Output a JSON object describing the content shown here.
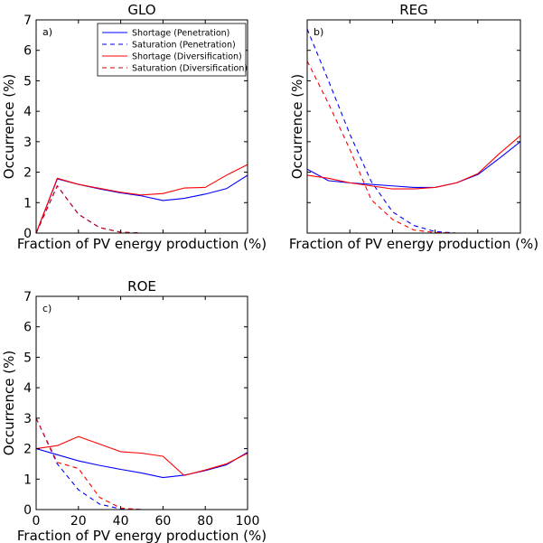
{
  "chart_data": [
    {
      "type": "line",
      "title": "GLO",
      "panel_tag": "a)",
      "xlabel": "Fraction of PV energy production (%)",
      "ylabel": "Occurrence (%)",
      "xlim": [
        0,
        100
      ],
      "ylim": [
        0,
        7
      ],
      "show_x_tick_labels": false,
      "show_y_tick_labels": true,
      "legend_position": "top-right",
      "x": [
        0,
        10,
        20,
        30,
        40,
        50,
        60,
        70,
        80,
        90,
        100
      ],
      "series": [
        {
          "name": "Shortage (Penetration)",
          "color": "#0000ff",
          "style": "solid",
          "values": [
            0,
            1.78,
            1.6,
            1.45,
            1.32,
            1.22,
            1.07,
            1.14,
            1.28,
            1.46,
            1.9
          ]
        },
        {
          "name": "Saturation (Penetration)",
          "color": "#0000ff",
          "style": "dashed",
          "values": [
            0,
            1.55,
            0.62,
            0.18,
            0.03,
            0,
            0,
            0,
            0,
            0,
            0
          ]
        },
        {
          "name": "Shortage (Diversification)",
          "color": "#ff0000",
          "style": "solid",
          "values": [
            0,
            1.8,
            1.6,
            1.47,
            1.34,
            1.25,
            1.3,
            1.48,
            1.5,
            1.9,
            2.25
          ]
        },
        {
          "name": "Saturation (Diversification)",
          "color": "#cc0000",
          "style": "dashed",
          "values": [
            0,
            1.55,
            0.62,
            0.18,
            0.03,
            0,
            0,
            0,
            0,
            0,
            0
          ]
        }
      ]
    },
    {
      "type": "line",
      "title": "REG",
      "panel_tag": "b)",
      "xlabel": "Fraction of PV energy production (%)",
      "ylabel": "Occurrence (%)",
      "xlim": [
        0,
        100
      ],
      "ylim": [
        0,
        7
      ],
      "show_x_tick_labels": false,
      "show_y_tick_labels": false,
      "x": [
        0,
        10,
        20,
        30,
        40,
        50,
        60,
        70,
        80,
        90,
        100
      ],
      "series": [
        {
          "name": "Shortage (Penetration)",
          "color": "#0000ff",
          "style": "solid",
          "values": [
            2.1,
            1.72,
            1.65,
            1.6,
            1.55,
            1.5,
            1.5,
            1.65,
            1.92,
            2.45,
            3.0
          ]
        },
        {
          "name": "Saturation (Penetration)",
          "color": "#0000ff",
          "style": "dashed",
          "values": [
            6.7,
            5.0,
            3.25,
            1.7,
            0.7,
            0.25,
            0.05,
            0,
            0,
            0,
            0
          ]
        },
        {
          "name": "Shortage (Diversification)",
          "color": "#ff0000",
          "style": "solid",
          "values": [
            1.9,
            1.8,
            1.65,
            1.55,
            1.45,
            1.45,
            1.5,
            1.65,
            1.95,
            2.6,
            3.2
          ]
        },
        {
          "name": "Saturation (Diversification)",
          "color": "#ff0000",
          "style": "dashed",
          "values": [
            5.65,
            4.25,
            2.75,
            1.1,
            0.45,
            0.1,
            0.02,
            0,
            0,
            0,
            0
          ]
        }
      ]
    },
    {
      "type": "line",
      "title": "ROE",
      "panel_tag": "c)",
      "xlabel": "Fraction of PV energy production (%)",
      "ylabel": "Occurrence (%)",
      "xlim": [
        0,
        100
      ],
      "ylim": [
        0,
        7
      ],
      "x_ticks": [
        0,
        20,
        40,
        60,
        80,
        100
      ],
      "y_ticks": [
        0,
        1,
        2,
        3,
        4,
        5,
        6,
        7
      ],
      "show_x_tick_labels": true,
      "show_y_tick_labels": true,
      "x": [
        0,
        10,
        20,
        30,
        40,
        50,
        60,
        70,
        80,
        90,
        100
      ],
      "series": [
        {
          "name": "Shortage (Penetration)",
          "color": "#0000ff",
          "style": "solid",
          "values": [
            2.0,
            1.8,
            1.6,
            1.45,
            1.32,
            1.2,
            1.05,
            1.13,
            1.28,
            1.47,
            1.88
          ]
        },
        {
          "name": "Saturation (Penetration)",
          "color": "#0000ff",
          "style": "dashed",
          "values": [
            3.0,
            1.5,
            0.65,
            0.18,
            0.02,
            0,
            0,
            0,
            0,
            0,
            0
          ]
        },
        {
          "name": "Shortage (Diversification)",
          "color": "#ff0000",
          "style": "solid",
          "values": [
            2.0,
            2.1,
            2.4,
            2.15,
            1.9,
            1.85,
            1.75,
            1.12,
            1.3,
            1.5,
            1.85
          ]
        },
        {
          "name": "Saturation (Diversification)",
          "color": "#ff0000",
          "style": "dashed",
          "values": [
            3.0,
            1.55,
            1.35,
            0.4,
            0.05,
            0,
            0,
            0,
            0,
            0,
            0
          ]
        }
      ]
    }
  ]
}
